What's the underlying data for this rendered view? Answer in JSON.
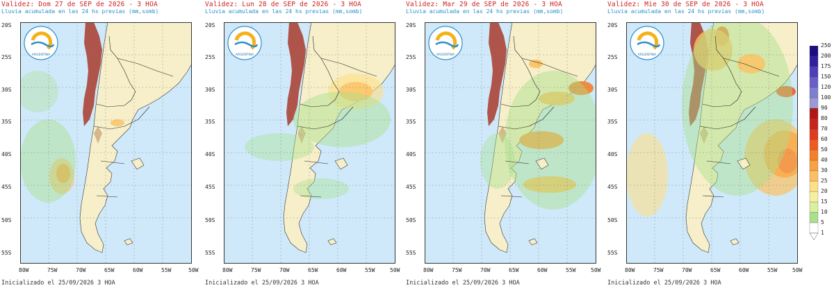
{
  "panels": [
    {
      "title": "Validez: Dom 27 de SEP de 2026 - 3 HOA",
      "subtitle": "Lluvia acumulada en las 24 hs previas (mm,somb)",
      "footer": "Inicializado el 25/09/2026 3 HOA"
    },
    {
      "title": "Validez: Lun 28 de SEP de 2026 - 3 HOA",
      "subtitle": "Lluvia acumulada en las 24 hs previas (mm,somb)",
      "footer": "Inicializado el 25/09/2026 3 HOA"
    },
    {
      "title": "Validez: Mar 29 de SEP de 2026 - 3 HOA",
      "subtitle": "Lluvia acumulada en las 24 hs previas (mm,somb)",
      "footer": "Inicializado el 25/09/2026 3 HOA"
    },
    {
      "title": "Validez: Mie 30 de SEP de 2026 - 3 HOA",
      "subtitle": "Lluvia acumulada en las 24 hs previas (mm,somb)",
      "footer": "Inicializado el 25/09/2026 3 HOA"
    }
  ],
  "lat_labels": [
    "20S",
    "25S",
    "30S",
    "35S",
    "40S",
    "45S",
    "50S",
    "55S"
  ],
  "lon_labels": [
    "80W",
    "75W",
    "70W",
    "65W",
    "60W",
    "55W",
    "50W"
  ],
  "logo_text": "ARGENTINA",
  "colorbar": {
    "levels": [
      "1",
      "5",
      "10",
      "15",
      "20",
      "25",
      "30",
      "40",
      "50",
      "60",
      "70",
      "80",
      "90",
      "100",
      "120",
      "150",
      "175",
      "200",
      "250"
    ],
    "colors": [
      "#ffffff",
      "#a8e08c",
      "#d9f0a0",
      "#f5f0a0",
      "#fde087",
      "#fcc060",
      "#f9a040",
      "#f57f2a",
      "#ee5a22",
      "#e03a1e",
      "#c8231c",
      "#b01818",
      "#9a9ad6",
      "#7f7fd0",
      "#6a5fc8",
      "#4d3fb8",
      "#3020a0",
      "#1a0f80"
    ]
  },
  "colors": {
    "ocean": "#cfe9fa",
    "land": "#f6efc9",
    "andes": "#a93a2a",
    "title": "#d02020",
    "subtitle": "#2a8fc9"
  }
}
